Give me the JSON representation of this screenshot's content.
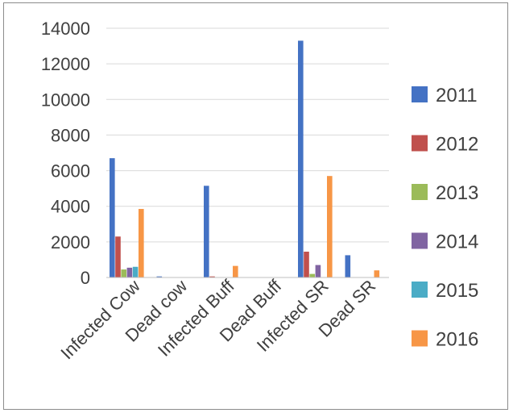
{
  "chart_data": {
    "type": "bar",
    "title": "",
    "xlabel": "",
    "ylabel": "",
    "ylim": [
      0,
      14000
    ],
    "yticks": [
      0,
      2000,
      4000,
      6000,
      8000,
      10000,
      12000,
      14000
    ],
    "grid": true,
    "legend_position": "right",
    "categories": [
      "Infected Cow",
      "Dead cow",
      "Infected Buff",
      "Dead Buff",
      "Infected SR",
      "Dead SR"
    ],
    "series": [
      {
        "name": "2011",
        "color": "#4472c4",
        "values": [
          6700,
          60,
          5150,
          0,
          13300,
          1250
        ]
      },
      {
        "name": "2012",
        "color": "#c0504d",
        "values": [
          2300,
          0,
          60,
          0,
          1450,
          0
        ]
      },
      {
        "name": "2013",
        "color": "#9bbb59",
        "values": [
          450,
          0,
          0,
          0,
          200,
          0
        ]
      },
      {
        "name": "2014",
        "color": "#8064a2",
        "values": [
          550,
          0,
          0,
          0,
          700,
          0
        ]
      },
      {
        "name": "2015",
        "color": "#4bacc6",
        "values": [
          600,
          0,
          0,
          0,
          0,
          0
        ]
      },
      {
        "name": "2016",
        "color": "#f79646",
        "values": [
          3850,
          0,
          650,
          0,
          5700,
          400
        ]
      }
    ]
  }
}
